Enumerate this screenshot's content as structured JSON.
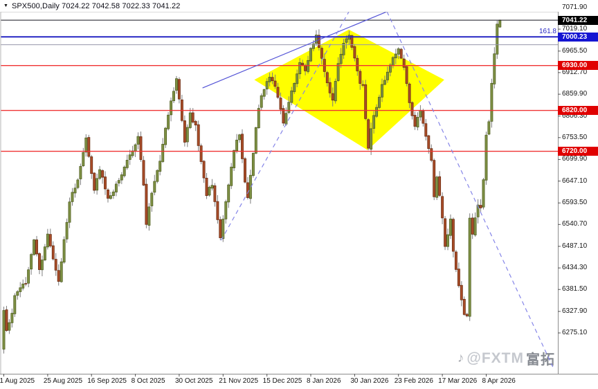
{
  "window": {
    "title": "SPX500,Daily  7024.22 7042.58 7022.33 7041.22",
    "symbol": "SPX500",
    "timeframe": "Daily"
  },
  "chart_data": {
    "type": "candlestick",
    "title": "SPX500,Daily",
    "ohlc_display": {
      "open": "7024.22",
      "high": "7042.58",
      "low": "7022.33",
      "close": "7041.22"
    },
    "y_axis": {
      "side": "right",
      "ticks": [
        "7071.90",
        "7019.10",
        "6965.50",
        "6912.70",
        "6859.90",
        "6806.30",
        "6753.50",
        "6699.90",
        "6647.10",
        "6593.50",
        "6540.70",
        "6487.10",
        "6434.30",
        "6381.50",
        "6327.90",
        "6275.10"
      ]
    },
    "x_axis": {
      "labels": [
        "1 Aug 2025",
        "25 Aug 2025",
        "16 Sep 2025",
        "8 Oct 2025",
        "30 Oct 2025",
        "21 Nov 2025",
        "15 Dec 2025",
        "8 Jan 2026",
        "30 Jan 2026",
        "23 Feb 2026",
        "17 Mar 2026",
        "8 Apr 2026"
      ],
      "label_every_n_candles": 16
    },
    "price_labels": [
      {
        "text": "7041.22",
        "price": 7041.22,
        "bg": "#000000",
        "fg": "#ffffff",
        "role": "current-price"
      },
      {
        "text": "7000.23",
        "price": 7000.23,
        "bg": "#1515d2",
        "fg": "#ffffff",
        "role": "fib-161-8-level"
      },
      {
        "text": "6930.00",
        "price": 6930.0,
        "bg": "#e00000",
        "fg": "#ffffff",
        "role": "red-level-6930"
      },
      {
        "text": "6820.00",
        "price": 6820.0,
        "bg": "#e00000",
        "fg": "#ffffff",
        "role": "red-level-6820"
      },
      {
        "text": "6720.00",
        "price": 6720.0,
        "bg": "#e00000",
        "fg": "#ffffff",
        "role": "red-level-6720"
      }
    ],
    "horizontal_lines": [
      {
        "price": 7041.22,
        "color": "#14141e",
        "width": 1,
        "style": "solid",
        "role": "current-price-line"
      },
      {
        "price": 7000.23,
        "color": "#2626c4",
        "width": 2,
        "style": "solid",
        "role": "fib-161-8-line"
      },
      {
        "price": 6981.0,
        "color": "#9494aa",
        "width": 1,
        "style": "solid",
        "role": "gray-level-line"
      },
      {
        "price": 6930.0,
        "color": "#f03232",
        "width": 1.4,
        "style": "solid",
        "role": "red-level-line-6930"
      },
      {
        "price": 6820.0,
        "color": "#f03232",
        "width": 1.4,
        "style": "solid",
        "role": "red-level-line-6820"
      },
      {
        "price": 6720.0,
        "color": "#f03232",
        "width": 1.4,
        "style": "solid",
        "role": "red-level-line-6720"
      }
    ],
    "fib_label": "161.8",
    "trendlines": [
      {
        "name": "rising-support-solid",
        "style": "solid",
        "color": "#5353d6",
        "from": [
          72.5,
          6875
        ],
        "to": [
          139.8,
          7062
        ]
      },
      {
        "name": "rising-channel-dashed",
        "style": "dashed",
        "color": "#8585e8",
        "from": [
          79.3,
          6502
        ],
        "to": [
          125.9,
          7062
        ]
      },
      {
        "name": "falling-resistance-dashed",
        "style": "dashed",
        "color": "#8585e8",
        "from": [
          139.8,
          7062
        ],
        "to": [
          200.3,
          6192
        ]
      }
    ],
    "pattern": {
      "name": "diamond",
      "fill": "#ffff00",
      "vertices": [
        [
          91.4,
          6895
        ],
        [
          125.9,
          7018
        ],
        [
          160.7,
          6895
        ],
        [
          132.7,
          6723
        ]
      ]
    },
    "n_candles": 182,
    "price_path": [
      [
        0,
        6330
      ],
      [
        1,
        6280
      ],
      [
        3,
        6320
      ],
      [
        4,
        6370
      ],
      [
        6,
        6385
      ],
      [
        8,
        6400
      ],
      [
        11,
        6500
      ],
      [
        13,
        6430
      ],
      [
        16,
        6515
      ],
      [
        18,
        6460
      ],
      [
        20,
        6400
      ],
      [
        24,
        6600
      ],
      [
        27,
        6645
      ],
      [
        30,
        6755
      ],
      [
        33,
        6620
      ],
      [
        35,
        6680
      ],
      [
        38,
        6600
      ],
      [
        42,
        6650
      ],
      [
        46,
        6710
      ],
      [
        49,
        6755
      ],
      [
        51,
        6640
      ],
      [
        52,
        6540
      ],
      [
        54,
        6620
      ],
      [
        57,
        6700
      ],
      [
        60,
        6810
      ],
      [
        63,
        6898
      ],
      [
        65,
        6800
      ],
      [
        66,
        6745
      ],
      [
        68,
        6810
      ],
      [
        70,
        6780
      ],
      [
        72,
        6690
      ],
      [
        74,
        6615
      ],
      [
        76,
        6640
      ],
      [
        79,
        6505
      ],
      [
        82,
        6640
      ],
      [
        84,
        6725
      ],
      [
        86,
        6762
      ],
      [
        88,
        6640
      ],
      [
        89,
        6610
      ],
      [
        91,
        6720
      ],
      [
        93,
        6830
      ],
      [
        95,
        6875
      ],
      [
        97,
        6902
      ],
      [
        99,
        6880
      ],
      [
        102,
        6792
      ],
      [
        104,
        6840
      ],
      [
        106,
        6888
      ],
      [
        108,
        6940
      ],
      [
        110,
        6915
      ],
      [
        112,
        6975
      ],
      [
        114,
        7000
      ],
      [
        116,
        6945
      ],
      [
        118,
        6890
      ],
      [
        120,
        6845
      ],
      [
        122,
        6935
      ],
      [
        124,
        6985
      ],
      [
        126,
        7008
      ],
      [
        128,
        6945
      ],
      [
        130,
        6890
      ],
      [
        131,
        6885
      ],
      [
        133,
        6725
      ],
      [
        134,
        6780
      ],
      [
        136,
        6830
      ],
      [
        138,
        6880
      ],
      [
        140,
        6915
      ],
      [
        142,
        6945
      ],
      [
        144,
        6972
      ],
      [
        146,
        6925
      ],
      [
        148,
        6840
      ],
      [
        150,
        6780
      ],
      [
        152,
        6818
      ],
      [
        154,
        6755
      ],
      [
        156,
        6695
      ],
      [
        157,
        6612
      ],
      [
        158,
        6658
      ],
      [
        160,
        6560
      ],
      [
        161,
        6485
      ],
      [
        163,
        6555
      ],
      [
        164,
        6470
      ],
      [
        166,
        6390
      ],
      [
        168,
        6320
      ],
      [
        169,
        6312
      ],
      [
        170,
        6560
      ],
      [
        171,
        6518
      ],
      [
        172,
        6558
      ],
      [
        173,
        6588
      ],
      [
        174,
        6582
      ],
      [
        175,
        6648
      ],
      [
        176,
        6758
      ],
      [
        177,
        6792
      ],
      [
        178,
        6885
      ],
      [
        179,
        6962
      ],
      [
        180,
        7034
      ],
      [
        181,
        7041.22
      ]
    ],
    "last_candle": {
      "open": 7024.22,
      "high": 7042.58,
      "low": 7022.33,
      "close": 7041.22
    },
    "colors": {
      "up": "#7e9044",
      "up_border": "#4c5a1c",
      "down": "#a84c28",
      "down_border": "#66280e",
      "wick": "#7d7d7d"
    }
  },
  "watermark": {
    "icon": "music-note-icon",
    "handle": "@FXTM",
    "brand_cn": "富拓"
  }
}
